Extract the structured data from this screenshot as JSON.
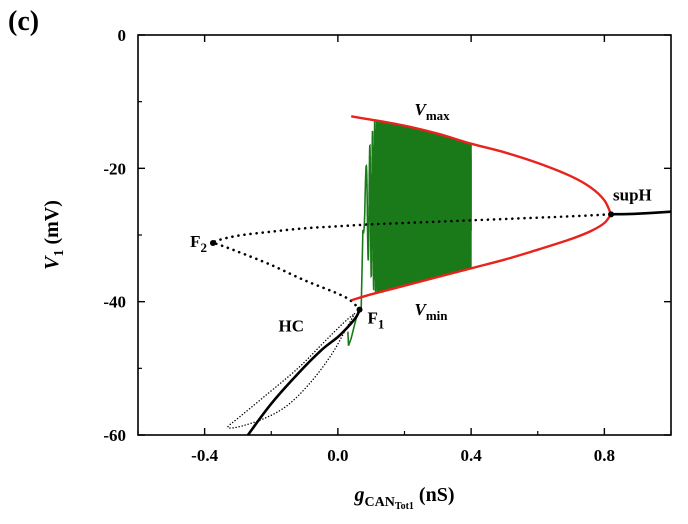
{
  "panel_label": "(c)",
  "colors": {
    "stable_branch": "#000000",
    "unstable_branch": "#000000",
    "limit_cycle_envelope": "#e8231b",
    "trajectory": "#1a7a1a"
  },
  "chart_data": {
    "type": "line",
    "title": "",
    "xlabel_parts": {
      "main": "g",
      "sub": "CAN",
      "subsub": "Tot1",
      "unit": " (nS)"
    },
    "ylabel_parts": {
      "main": "V",
      "sub": "1",
      "unit": " (mV)"
    },
    "xlim": [
      -0.6,
      1.0
    ],
    "ylim": [
      -60,
      0
    ],
    "xticks": [
      -0.4,
      0.0,
      0.4,
      0.8
    ],
    "xtick_labels": [
      "-0.4",
      "0.0",
      "0.4",
      "0.8"
    ],
    "yticks": [
      -60,
      -40,
      -20,
      0
    ],
    "ytick_labels": [
      "-60",
      "-40",
      "-20",
      "0"
    ],
    "grid": false,
    "series": [
      {
        "kind": "stable-low",
        "style": "solid-black",
        "x": [
          -0.27,
          -0.2,
          -0.12,
          -0.05,
          0.0,
          0.03,
          0.055,
          0.065
        ],
        "y": [
          -60,
          -55.3,
          -50.8,
          -47.3,
          -45.3,
          -43.8,
          -42.3,
          -41.2
        ]
      },
      {
        "kind": "unstable-middle",
        "style": "dotted-black",
        "x": [
          0.065,
          0.04,
          0.0,
          -0.1,
          -0.2,
          -0.3,
          -0.36,
          -0.375,
          -0.36,
          -0.3,
          -0.2,
          -0.1,
          0.0,
          0.1,
          0.2,
          0.3,
          0.4,
          0.5,
          0.6,
          0.7,
          0.82
        ],
        "y": [
          -41.2,
          -39.9,
          -38.8,
          -36.8,
          -34.5,
          -32.5,
          -31.4,
          -31.2,
          -30.8,
          -30.1,
          -29.5,
          -29.0,
          -28.7,
          -28.4,
          -28.2,
          -28.0,
          -27.8,
          -27.6,
          -27.4,
          -27.2,
          -26.9
        ]
      },
      {
        "kind": "stable-high",
        "style": "solid-black",
        "x": [
          0.82,
          0.9,
          1.0
        ],
        "y": [
          -26.9,
          -26.8,
          -26.5
        ]
      },
      {
        "kind": "homoclinic-loop",
        "style": "thin-dotted-black",
        "x": [
          0.05,
          0.02,
          -0.02,
          -0.08,
          -0.15,
          -0.22,
          -0.3,
          -0.33,
          -0.3,
          -0.22,
          -0.12,
          -0.05,
          0.0,
          0.03,
          0.05
        ],
        "y": [
          -41.8,
          -44.5,
          -48.0,
          -52.0,
          -55.5,
          -57.5,
          -58.8,
          -58.8,
          -57.5,
          -54.2,
          -50.0,
          -46.5,
          -44.0,
          -42.6,
          -41.8
        ]
      },
      {
        "kind": "vmax-envelope",
        "style": "solid-red",
        "x": [
          0.04,
          0.1,
          0.2,
          0.3,
          0.4,
          0.5,
          0.6,
          0.7,
          0.76,
          0.8,
          0.82
        ],
        "y": [
          -12.2,
          -12.7,
          -13.6,
          -14.8,
          -16.3,
          -17.6,
          -19.2,
          -21.2,
          -22.9,
          -24.8,
          -26.9
        ]
      },
      {
        "kind": "vmin-envelope",
        "style": "solid-red",
        "x": [
          0.04,
          0.1,
          0.2,
          0.3,
          0.4,
          0.5,
          0.6,
          0.7,
          0.76,
          0.8,
          0.82
        ],
        "y": [
          -39.8,
          -38.9,
          -37.6,
          -36.3,
          -35.0,
          -33.7,
          -32.2,
          -30.6,
          -29.4,
          -28.2,
          -26.9
        ]
      },
      {
        "kind": "slow-sweep-trajectory",
        "style": "solid-green",
        "x_range": [
          0.03,
          0.4
        ],
        "y_approx": "oscillation between Vmin and Vmax envelopes, onset near x = 0.08"
      }
    ],
    "special_points": [
      {
        "label_main": "F",
        "label_sub": "2",
        "x": -0.375,
        "y": -31.2
      },
      {
        "label_main": "F",
        "label_sub": "1",
        "x": 0.065,
        "y": -41.2
      },
      {
        "label_main": "supH",
        "label_sub": "",
        "x": 0.82,
        "y": -26.9
      }
    ],
    "annotations": [
      {
        "text": "HC",
        "x": -0.14,
        "y": -44.5
      },
      {
        "label_main": "V",
        "label_sub": "max",
        "x": 0.23,
        "y": -12.0
      },
      {
        "label_main": "V",
        "label_sub": "min",
        "x": 0.23,
        "y": -42.0
      }
    ]
  }
}
